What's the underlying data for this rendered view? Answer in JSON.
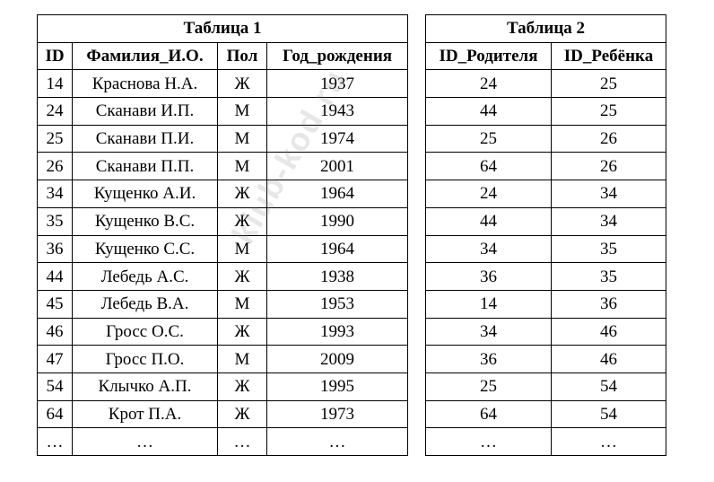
{
  "table1": {
    "title": "Таблица 1",
    "headers": [
      "ID",
      "Фамилия_И.О.",
      "Пол",
      "Год_рождения"
    ],
    "rows": [
      [
        "14",
        "Краснова Н.А.",
        "Ж",
        "1937"
      ],
      [
        "24",
        "Сканави И.П.",
        "М",
        "1943"
      ],
      [
        "25",
        "Сканави П.И.",
        "М",
        "1974"
      ],
      [
        "26",
        "Сканави П.П.",
        "М",
        "2001"
      ],
      [
        "34",
        "Кущенко А.И.",
        "Ж",
        "1964"
      ],
      [
        "35",
        "Кущенко В.С.",
        "Ж",
        "1990"
      ],
      [
        "36",
        "Кущенко С.С.",
        "М",
        "1964"
      ],
      [
        "44",
        "Лебедь А.С.",
        "Ж",
        "1938"
      ],
      [
        "45",
        "Лебедь В.А.",
        "М",
        "1953"
      ],
      [
        "46",
        "Гросс О.С.",
        "Ж",
        "1993"
      ],
      [
        "47",
        "Гросс П.О.",
        "М",
        "2009"
      ],
      [
        "54",
        "Клычко А.П.",
        "Ж",
        "1995"
      ],
      [
        "64",
        "Крот П.А.",
        "Ж",
        "1973"
      ],
      [
        "…",
        "…",
        "…",
        "…"
      ]
    ]
  },
  "table2": {
    "title": "Таблица 2",
    "headers": [
      "ID_Родителя",
      "ID_Ребёнка"
    ],
    "rows": [
      [
        "24",
        "25"
      ],
      [
        "44",
        "25"
      ],
      [
        "25",
        "26"
      ],
      [
        "64",
        "26"
      ],
      [
        "24",
        "34"
      ],
      [
        "44",
        "34"
      ],
      [
        "34",
        "35"
      ],
      [
        "36",
        "35"
      ],
      [
        "14",
        "36"
      ],
      [
        "34",
        "46"
      ],
      [
        "36",
        "46"
      ],
      [
        "25",
        "54"
      ],
      [
        "64",
        "54"
      ],
      [
        "…",
        "…"
      ]
    ]
  },
  "watermark": "klub-kod.ru"
}
